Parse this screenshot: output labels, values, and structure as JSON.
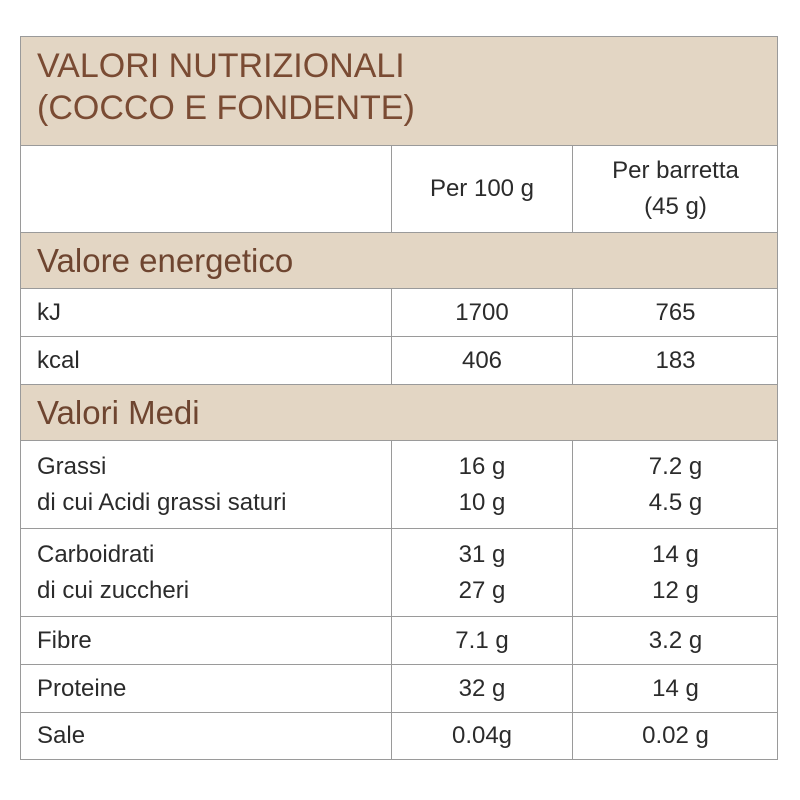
{
  "title": [
    "VALORI NUTRIZIONALI",
    "(COCCO E FONDENTE)"
  ],
  "columns": [
    [
      "Per 100 g"
    ],
    [
      "Per barretta",
      "(45 g)"
    ]
  ],
  "sections": [
    {
      "title": "Valore energetico",
      "rows": [
        [
          [
            "kJ"
          ],
          [
            "1700"
          ],
          [
            "765"
          ]
        ],
        [
          [
            "kcal"
          ],
          [
            "406"
          ],
          [
            "183"
          ]
        ]
      ]
    },
    {
      "title": "Valori Medi",
      "rows": [
        [
          [
            "Grassi",
            "di cui Acidi grassi saturi"
          ],
          [
            "16 g",
            "10 g"
          ],
          [
            "7.2 g",
            "4.5 g"
          ]
        ],
        [
          [
            "Carboidrati",
            "di cui zuccheri"
          ],
          [
            "31 g",
            "27 g"
          ],
          [
            "14 g",
            "12 g"
          ]
        ],
        [
          [
            "Fibre"
          ],
          [
            "7.1 g"
          ],
          [
            "3.2 g"
          ]
        ],
        [
          [
            "Proteine"
          ],
          [
            "32 g"
          ],
          [
            "14 g"
          ]
        ],
        [
          [
            "Sale"
          ],
          [
            "0.04g"
          ],
          [
            "0.02 g"
          ]
        ]
      ]
    }
  ]
}
